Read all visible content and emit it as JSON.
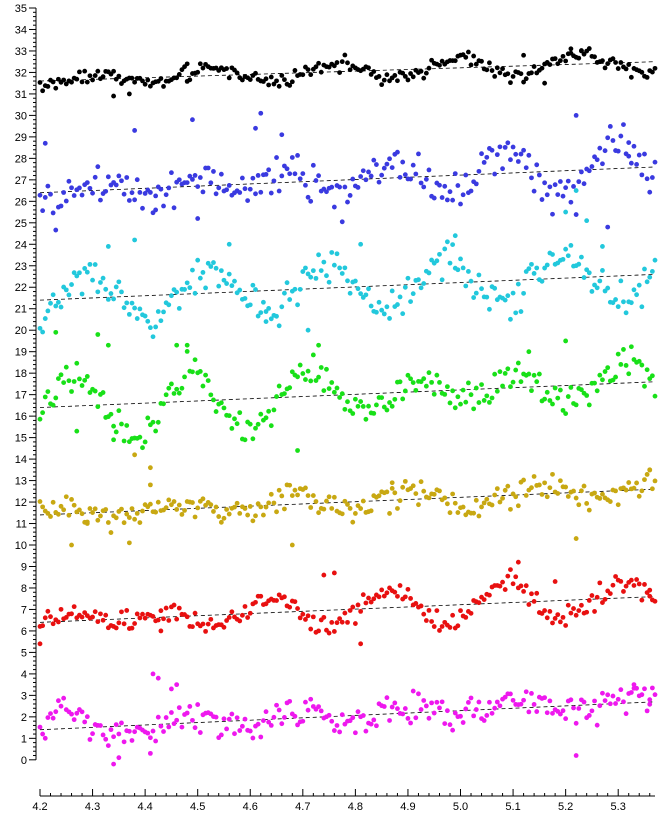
{
  "chart_data": {
    "type": "scatter",
    "title": "",
    "xlabel": "",
    "ylabel": "",
    "xlim": [
      4.2,
      5.37
    ],
    "ylim": [
      -0.8,
      35
    ],
    "x_ticks": [
      "4.2",
      "4.3",
      "4.4",
      "4.5",
      "4.6",
      "4.7",
      "4.8",
      "4.9",
      "5.0",
      "5.1",
      "5.2",
      "5.3"
    ],
    "y_ticks": [
      "0",
      "1",
      "2",
      "3",
      "4",
      "5",
      "6",
      "7",
      "8",
      "9",
      "10",
      "11",
      "12",
      "13",
      "14",
      "15",
      "16",
      "17",
      "18",
      "19",
      "20",
      "21",
      "22",
      "23",
      "24",
      "25",
      "26",
      "27",
      "28",
      "29",
      "30",
      "31",
      "32",
      "33",
      "34",
      "35"
    ],
    "grid": false,
    "legend": "none",
    "x_step": 0.005,
    "series": [
      {
        "color": "#000000",
        "trend": [
          31.6,
          32.5
        ],
        "wiggle": [
          [
            0.35,
            0.9
          ],
          [
            0.15,
            2.3
          ]
        ],
        "noise": 0.25,
        "anchors": [
          [
            4.34,
            30.9
          ],
          [
            4.37,
            31.0
          ],
          [
            4.48,
            32.4
          ],
          [
            5.12,
            32.8
          ],
          [
            5.21,
            33.1
          ],
          [
            5.23,
            33.0
          ],
          [
            5.16,
            31.5
          ]
        ]
      },
      {
        "color": "#3a3ae0",
        "trend": [
          26.4,
          27.6
        ],
        "wiggle": [
          [
            0.6,
            0.8
          ],
          [
            0.5,
            2.1
          ]
        ],
        "noise": 0.7,
        "anchors": [
          [
            4.21,
            28.7
          ],
          [
            4.38,
            29.3
          ],
          [
            4.49,
            29.8
          ],
          [
            4.62,
            30.1
          ],
          [
            4.66,
            29.1
          ],
          [
            5.22,
            30.0
          ],
          [
            5.32,
            28.1
          ],
          [
            4.5,
            25.2
          ],
          [
            5.28,
            24.8
          ],
          [
            4.61,
            29.4
          ],
          [
            4.42,
            25.6
          ]
        ]
      },
      {
        "color": "#22c8dc",
        "trend": [
          21.4,
          22.6
        ],
        "wiggle": [
          [
            0.6,
            0.9
          ],
          [
            0.5,
            2.0
          ]
        ],
        "noise": 0.6,
        "anchors": [
          [
            4.33,
            23.9
          ],
          [
            4.38,
            24.2
          ],
          [
            4.56,
            24.0
          ],
          [
            4.81,
            24.0
          ],
          [
            4.71,
            20.0
          ],
          [
            5.2,
            25.5
          ],
          [
            5.22,
            26.5
          ],
          [
            5.24,
            25.1
          ],
          [
            5.27,
            23.9
          ],
          [
            4.99,
            24.4
          ],
          [
            4.63,
            20.4
          ]
        ]
      },
      {
        "color": "#18e018",
        "trend": [
          16.4,
          17.6
        ],
        "wiggle": [
          [
            1.0,
            0.85
          ],
          [
            0.6,
            2.3
          ]
        ],
        "noise": 0.6,
        "anchors": [
          [
            4.23,
            19.9
          ],
          [
            4.31,
            19.8
          ],
          [
            4.33,
            19.3
          ],
          [
            4.46,
            19.3
          ],
          [
            4.48,
            19.3
          ],
          [
            4.73,
            19.3
          ],
          [
            5.2,
            19.5
          ],
          [
            4.34,
            14.9
          ],
          [
            4.69,
            14.4
          ],
          [
            5.13,
            19.0
          ],
          [
            4.27,
            15.3
          ]
        ]
      },
      {
        "color": "#c8a812",
        "trend": [
          11.4,
          12.6
        ],
        "wiggle": [
          [
            0.35,
            0.9
          ],
          [
            0.2,
            2.1
          ]
        ],
        "noise": 0.5,
        "anchors": [
          [
            4.38,
            14.2
          ],
          [
            4.41,
            13.6
          ],
          [
            4.41,
            12.8
          ],
          [
            4.29,
            11.0
          ],
          [
            4.68,
            10.0
          ],
          [
            5.22,
            10.3
          ],
          [
            5.36,
            13.5
          ],
          [
            4.26,
            10.0
          ],
          [
            4.37,
            10.1
          ],
          [
            4.87,
            12.9
          ]
        ]
      },
      {
        "color": "#e81010",
        "trend": [
          6.4,
          7.6
        ],
        "wiggle": [
          [
            0.5,
            0.85
          ],
          [
            0.4,
            2.2
          ]
        ],
        "noise": 0.4,
        "anchors": [
          [
            4.2,
            5.4
          ],
          [
            4.74,
            8.6
          ],
          [
            4.76,
            8.7
          ],
          [
            5.11,
            9.2
          ],
          [
            4.81,
            5.4
          ],
          [
            5.18,
            8.3
          ],
          [
            4.43,
            6.0
          ],
          [
            5.36,
            7.9
          ]
        ]
      },
      {
        "color": "#ee18ee",
        "trend": [
          1.4,
          2.7
        ],
        "wiggle": [
          [
            0.5,
            0.9
          ],
          [
            0.3,
            2.2
          ]
        ],
        "noise": 0.55,
        "anchors": [
          [
            4.415,
            4.0
          ],
          [
            4.425,
            3.8
          ],
          [
            4.45,
            3.3
          ],
          [
            4.34,
            -0.2
          ],
          [
            4.35,
            0.1
          ],
          [
            4.41,
            0.3
          ],
          [
            5.22,
            0.2
          ],
          [
            5.33,
            3.5
          ],
          [
            5.36,
            2.8
          ],
          [
            4.46,
            3.5
          ]
        ]
      }
    ]
  }
}
